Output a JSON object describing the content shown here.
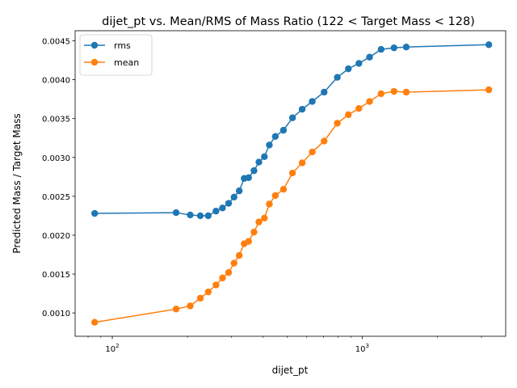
{
  "chart_data": {
    "type": "line",
    "title": "dijet_pt vs. Mean/RMS of Mass Ratio (122 < Target Mass < 128)",
    "xlabel": "dijet_pt",
    "ylabel": "Predicted Mass / Target Mass",
    "x_scale": "log",
    "xlim": [
      71,
      3750
    ],
    "ylim": [
      0.0007,
      0.00463
    ],
    "x_ticks": [
      {
        "value": 100,
        "base": "10",
        "exp": "2"
      },
      {
        "value": 1000,
        "base": "10",
        "exp": "3"
      }
    ],
    "y_ticks": [
      {
        "value": 0.001,
        "label": "0.0010"
      },
      {
        "value": 0.0015,
        "label": "0.0015"
      },
      {
        "value": 0.002,
        "label": "0.0020"
      },
      {
        "value": 0.0025,
        "label": "0.0025"
      },
      {
        "value": 0.003,
        "label": "0.0030"
      },
      {
        "value": 0.0035,
        "label": "0.0035"
      },
      {
        "value": 0.004,
        "label": "0.0040"
      },
      {
        "value": 0.0045,
        "label": "0.0045"
      }
    ],
    "legend_position": "upper left",
    "grid": false,
    "x": [
      85,
      180,
      205,
      225,
      242,
      260,
      276,
      292,
      307,
      322,
      337,
      351,
      369,
      386,
      406,
      425,
      449,
      484,
      526,
      575,
      631,
      704,
      795,
      880,
      970,
      1070,
      1190,
      1340,
      1500,
      3210
    ],
    "series": [
      {
        "name": "rms",
        "color": "#1f77b4",
        "values": [
          0.00228,
          0.00229,
          0.00226,
          0.00225,
          0.00225,
          0.00231,
          0.00235,
          0.00241,
          0.00249,
          0.00257,
          0.00273,
          0.00274,
          0.00283,
          0.00294,
          0.00301,
          0.00316,
          0.00327,
          0.00335,
          0.00351,
          0.00362,
          0.00372,
          0.00384,
          0.00403,
          0.00414,
          0.00421,
          0.00429,
          0.00439,
          0.00441,
          0.00442,
          0.00445
        ]
      },
      {
        "name": "mean",
        "color": "#ff7f0e",
        "values": [
          0.00088,
          0.00105,
          0.00109,
          0.00119,
          0.00127,
          0.00136,
          0.00145,
          0.00152,
          0.00164,
          0.00174,
          0.00189,
          0.00192,
          0.00204,
          0.00217,
          0.00222,
          0.0024,
          0.00251,
          0.00259,
          0.0028,
          0.00293,
          0.00307,
          0.00321,
          0.00344,
          0.00355,
          0.00363,
          0.00372,
          0.00382,
          0.00385,
          0.00384,
          0.00387
        ]
      }
    ]
  }
}
